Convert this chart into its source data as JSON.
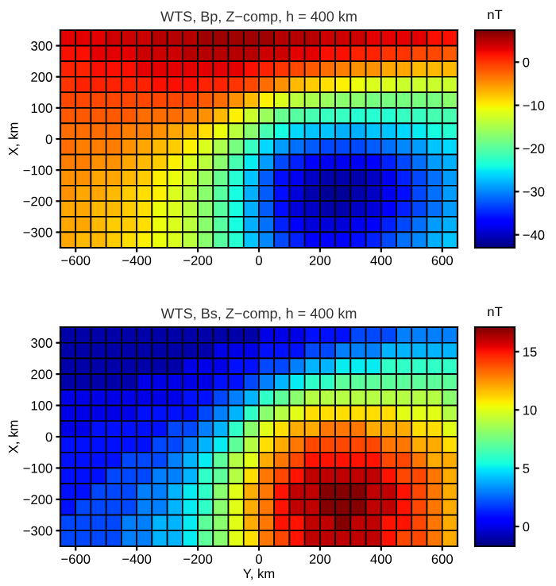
{
  "chart_data": [
    {
      "type": "heatmap",
      "title": "WTS, Bp, Z−comp, h = 400 km",
      "ylabel": "X, km",
      "clabel": "nT",
      "xlim": [
        -650,
        650
      ],
      "ylim": [
        -350,
        350
      ],
      "xticks": [
        {
          "value": -600,
          "label": "−600"
        },
        {
          "value": -400,
          "label": "−400"
        },
        {
          "value": -200,
          "label": "−200"
        },
        0,
        200,
        400,
        600
      ],
      "yticks": [
        {
          "value": -300,
          "label": "−300"
        },
        {
          "value": -200,
          "label": "−200"
        },
        {
          "value": -100,
          "label": "−100"
        },
        0,
        100,
        200,
        300
      ],
      "clim": [
        -43,
        7.4
      ],
      "cticks": [
        {
          "value": -40,
          "label": "−40"
        },
        {
          "value": -30,
          "label": "−30"
        },
        {
          "value": -20,
          "label": "−20"
        },
        {
          "value": -10,
          "label": "−10"
        },
        0
      ],
      "cells": [
        [
          3,
          3,
          3,
          4,
          4,
          4,
          5,
          5,
          5,
          6,
          6,
          6,
          6,
          6,
          5,
          5,
          5,
          4,
          4,
          4,
          3,
          3,
          3,
          3,
          2,
          2
        ],
        [
          2,
          2,
          3,
          3,
          3,
          4,
          4,
          4,
          5,
          5,
          5,
          5,
          5,
          4,
          4,
          3,
          3,
          2,
          2,
          1,
          1,
          0,
          0,
          -1,
          -1,
          -2
        ],
        [
          1,
          1,
          2,
          2,
          2,
          3,
          3,
          3,
          3,
          3,
          3,
          3,
          2,
          1,
          0,
          -1,
          -2,
          -3,
          -4,
          -5,
          -5,
          -6,
          -6,
          -7,
          -7,
          -7
        ],
        [
          0,
          1,
          1,
          1,
          1,
          1,
          2,
          2,
          2,
          1,
          1,
          0,
          -1,
          -3,
          -5,
          -7,
          -8,
          -9,
          -10,
          -11,
          -12,
          -12,
          -13,
          -13,
          -13,
          -13
        ],
        [
          -1,
          -1,
          -1,
          -1,
          -1,
          -1,
          -1,
          -1,
          -1,
          -2,
          -3,
          -5,
          -7,
          -10,
          -12,
          -14,
          -15,
          -16,
          -17,
          -17,
          -18,
          -18,
          -18,
          -18,
          -18,
          -17
        ],
        [
          -2,
          -2,
          -2,
          -2,
          -2,
          -3,
          -3,
          -3,
          -4,
          -5,
          -7,
          -10,
          -13,
          -16,
          -19,
          -20,
          -21,
          -22,
          -22,
          -23,
          -23,
          -23,
          -22,
          -22,
          -21,
          -21
        ],
        [
          -3,
          -3,
          -3,
          -3,
          -4,
          -4,
          -5,
          -6,
          -7,
          -9,
          -11,
          -14,
          -17,
          -21,
          -24,
          -26,
          -27,
          -27,
          -28,
          -28,
          -27,
          -27,
          -26,
          -25,
          -24,
          -23
        ],
        [
          -3,
          -4,
          -4,
          -4,
          -5,
          -6,
          -7,
          -8,
          -10,
          -12,
          -15,
          -18,
          -22,
          -26,
          -29,
          -31,
          -32,
          -33,
          -33,
          -33,
          -32,
          -31,
          -30,
          -29,
          -27,
          -26
        ],
        [
          -4,
          -4,
          -5,
          -5,
          -6,
          -7,
          -8,
          -10,
          -12,
          -14,
          -17,
          -21,
          -25,
          -29,
          -33,
          -35,
          -37,
          -38,
          -38,
          -38,
          -37,
          -35,
          -33,
          -31,
          -29,
          -28
        ],
        [
          -5,
          -5,
          -6,
          -6,
          -7,
          -8,
          -10,
          -11,
          -13,
          -16,
          -19,
          -23,
          -27,
          -32,
          -36,
          -38,
          -40,
          -41,
          -41,
          -41,
          -40,
          -38,
          -35,
          -33,
          -31,
          -29
        ],
        [
          -5,
          -6,
          -6,
          -7,
          -8,
          -9,
          -10,
          -12,
          -14,
          -17,
          -20,
          -24,
          -28,
          -32,
          -36,
          -39,
          -41,
          -42,
          -42,
          -41,
          -40,
          -38,
          -36,
          -33,
          -31,
          -29
        ],
        [
          -6,
          -6,
          -7,
          -7,
          -8,
          -9,
          -11,
          -12,
          -14,
          -17,
          -20,
          -24,
          -28,
          -32,
          -36,
          -39,
          -40,
          -41,
          -41,
          -40,
          -39,
          -37,
          -35,
          -33,
          -31,
          -29
        ],
        [
          -6,
          -6,
          -7,
          -8,
          -8,
          -9,
          -11,
          -12,
          -14,
          -17,
          -20,
          -24,
          -28,
          -31,
          -35,
          -37,
          -39,
          -39,
          -39,
          -38,
          -37,
          -35,
          -33,
          -31,
          -29,
          -28
        ],
        [
          -6,
          -7,
          -7,
          -8,
          -9,
          -10,
          -11,
          -12,
          -14,
          -17,
          -20,
          -23,
          -27,
          -30,
          -33,
          -35,
          -37,
          -37,
          -37,
          -36,
          -35,
          -33,
          -31,
          -30,
          -28,
          -27
        ]
      ]
    },
    {
      "type": "heatmap",
      "title": "WTS, Bs, Z−comp, h = 400 km",
      "xlabel": "Y, km",
      "ylabel": "X, km",
      "clabel": "nT",
      "xlim": [
        -650,
        650
      ],
      "ylim": [
        -350,
        350
      ],
      "xticks": [
        {
          "value": -600,
          "label": "−600"
        },
        {
          "value": -400,
          "label": "−400"
        },
        {
          "value": -200,
          "label": "−200"
        },
        0,
        200,
        400,
        600
      ],
      "yticks": [
        {
          "value": -300,
          "label": "−300"
        },
        {
          "value": -200,
          "label": "−200"
        },
        {
          "value": -100,
          "label": "−100"
        },
        0,
        100,
        200,
        300
      ],
      "clim": [
        -1.7,
        17.1
      ],
      "cticks": [
        0,
        5,
        10,
        15
      ],
      "cells": [
        [
          -1,
          -1,
          -1,
          -1,
          -1,
          -1,
          -1,
          -1,
          -1,
          -1,
          -1,
          -1,
          -1,
          0,
          0,
          0,
          1,
          1,
          1,
          2,
          2,
          2,
          3,
          3,
          3,
          3
        ],
        [
          -1,
          -1,
          -1,
          -1,
          -1,
          -1,
          -1,
          -1,
          -1,
          -1,
          0,
          0,
          0,
          1,
          1,
          1,
          2,
          2,
          3,
          3,
          3,
          4,
          4,
          4,
          4,
          4
        ],
        [
          -1,
          -1,
          -1,
          -1,
          -1,
          -1,
          -1,
          -1,
          0,
          0,
          0,
          1,
          1,
          2,
          2,
          3,
          4,
          4,
          5,
          5,
          5,
          6,
          6,
          6,
          6,
          6
        ],
        [
          -1,
          -1,
          -1,
          -1,
          -1,
          0,
          0,
          0,
          0,
          0,
          1,
          1,
          2,
          3,
          4,
          5,
          6,
          6,
          7,
          7,
          7,
          7,
          7,
          7,
          7,
          7
        ],
        [
          0,
          0,
          0,
          0,
          0,
          0,
          0,
          0,
          1,
          1,
          2,
          3,
          4,
          6,
          7,
          8,
          9,
          9,
          9,
          9,
          9,
          9,
          9,
          9,
          9,
          8
        ],
        [
          0,
          0,
          0,
          0,
          0,
          1,
          1,
          1,
          1,
          2,
          3,
          4,
          6,
          8,
          9,
          10,
          11,
          11,
          11,
          11,
          11,
          11,
          10,
          10,
          10,
          9
        ],
        [
          0,
          0,
          1,
          1,
          1,
          1,
          1,
          2,
          2,
          3,
          4,
          6,
          8,
          10,
          11,
          12,
          12,
          13,
          13,
          13,
          12,
          12,
          12,
          11,
          11,
          10
        ],
        [
          1,
          1,
          1,
          1,
          1,
          1,
          2,
          2,
          3,
          4,
          5,
          7,
          9,
          11,
          12,
          13,
          14,
          14,
          14,
          14,
          14,
          13,
          13,
          12,
          12,
          11
        ],
        [
          1,
          1,
          1,
          1,
          2,
          2,
          2,
          3,
          4,
          5,
          7,
          9,
          10,
          12,
          13,
          14,
          15,
          15,
          15,
          15,
          15,
          14,
          14,
          13,
          12,
          12
        ],
        [
          1,
          1,
          1,
          2,
          2,
          2,
          3,
          3,
          4,
          6,
          7,
          9,
          11,
          13,
          14,
          15,
          16,
          16,
          16,
          16,
          16,
          15,
          14,
          14,
          13,
          12
        ],
        [
          1,
          1,
          2,
          2,
          2,
          3,
          3,
          4,
          5,
          6,
          8,
          10,
          12,
          13,
          15,
          16,
          16,
          17,
          17,
          17,
          16,
          16,
          15,
          14,
          13,
          12
        ],
        [
          1,
          2,
          2,
          2,
          2,
          3,
          3,
          4,
          5,
          6,
          8,
          10,
          12,
          13,
          15,
          16,
          16,
          17,
          17,
          17,
          16,
          16,
          15,
          14,
          13,
          12
        ],
        [
          2,
          2,
          2,
          2,
          3,
          3,
          4,
          4,
          5,
          7,
          8,
          10,
          12,
          13,
          15,
          15,
          16,
          16,
          17,
          16,
          16,
          15,
          15,
          14,
          13,
          12
        ],
        [
          2,
          2,
          2,
          2,
          3,
          3,
          4,
          4,
          5,
          7,
          8,
          10,
          11,
          13,
          14,
          15,
          16,
          16,
          16,
          16,
          16,
          15,
          14,
          14,
          13,
          12
        ]
      ]
    }
  ]
}
